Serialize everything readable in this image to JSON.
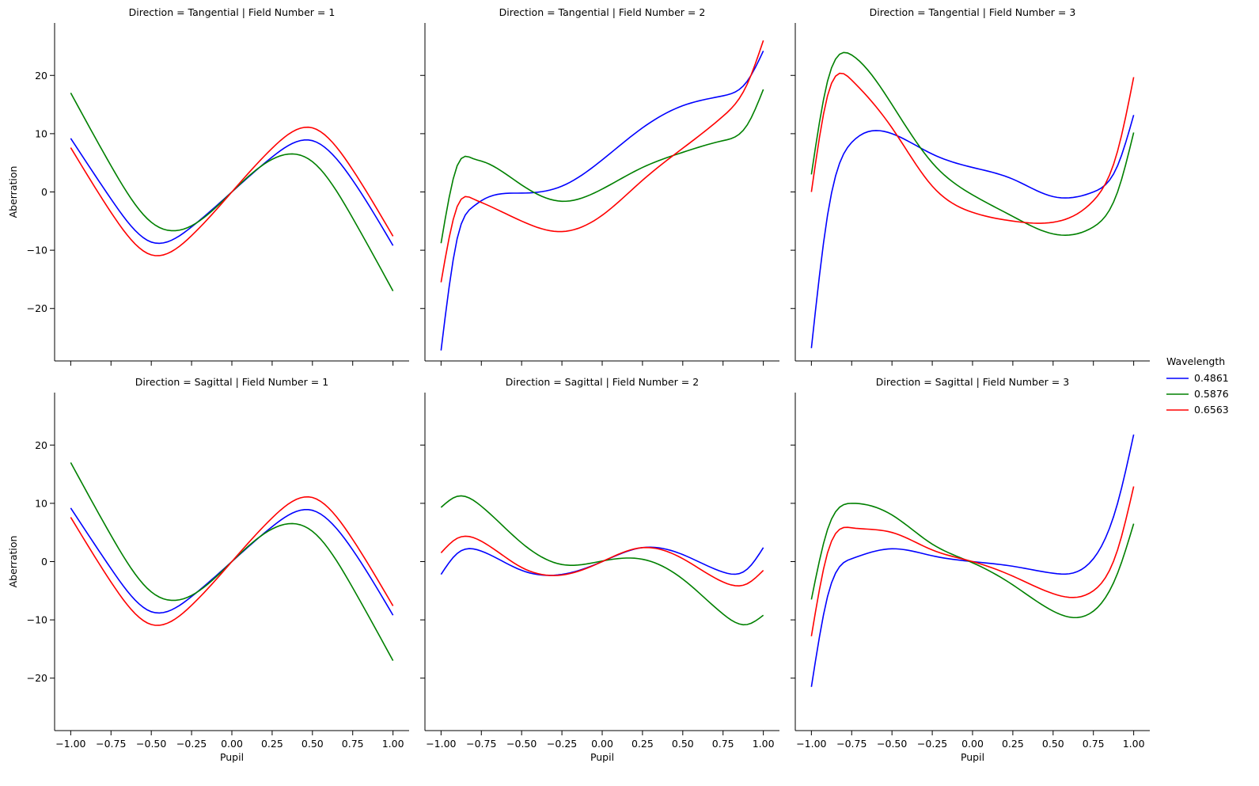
{
  "chart_data": {
    "type": "line",
    "facet_grid": true,
    "row_facet": "Direction",
    "col_facet": "Field Number",
    "xlabel": "Pupil",
    "ylabel": "Aberration",
    "xlim": [
      -1.1,
      1.1
    ],
    "ylim": [
      -29,
      29
    ],
    "xticks": [
      -1.0,
      -0.75,
      -0.5,
      -0.25,
      0.0,
      0.25,
      0.5,
      0.75,
      1.0
    ],
    "xtick_labels": [
      "−1.00",
      "−0.75",
      "−0.50",
      "−0.25",
      "0.00",
      "0.25",
      "0.50",
      "0.75",
      "1.00"
    ],
    "yticks": [
      -20,
      -10,
      0,
      10,
      20
    ],
    "ytick_labels": [
      "−20",
      "−10",
      "0",
      "10",
      "20"
    ],
    "grid": false,
    "legend": {
      "title": "Wavelength",
      "placement": "right",
      "entries": [
        {
          "label": "0.4861",
          "color": "#0000ff"
        },
        {
          "label": "0.5876",
          "color": "#008000"
        },
        {
          "label": "0.6563",
          "color": "#ff0000"
        }
      ]
    },
    "panels": [
      {
        "title": "Direction = Tangential | Field Number = 1",
        "x": [
          -1.0,
          -0.75,
          -0.5,
          -0.25,
          0.0,
          0.25,
          0.5,
          0.75,
          1.0
        ],
        "series": [
          {
            "name": "0.4861",
            "color": "#0000ff",
            "values": [
              9.2,
              -1.2,
              -8.6,
              -6.0,
              0.0,
              6.0,
              8.8,
              2.0,
              -9.2
            ]
          },
          {
            "name": "0.5876",
            "color": "#008000",
            "values": [
              17.0,
              4.5,
              -5.2,
              -5.8,
              0.0,
              5.6,
              5.2,
              -4.5,
              -17.0
            ]
          },
          {
            "name": "0.6563",
            "color": "#ff0000",
            "values": [
              7.6,
              -3.5,
              -10.8,
              -7.5,
              0.0,
              7.5,
              11.0,
              3.8,
              -7.6
            ]
          }
        ]
      },
      {
        "title": "Direction = Tangential | Field Number = 2",
        "x": [
          -1.0,
          -0.9,
          -0.8,
          -0.75,
          -0.5,
          -0.25,
          0.0,
          0.25,
          0.5,
          0.75,
          0.9,
          1.0
        ],
        "series": [
          {
            "name": "0.4861",
            "color": "#0000ff",
            "values": [
              -27.2,
              -8.0,
              -2.5,
              -1.5,
              -0.2,
              1.0,
              5.5,
              11.0,
              14.8,
              16.5,
              19.0,
              24.2
            ]
          },
          {
            "name": "0.5876",
            "color": "#008000",
            "values": [
              -8.8,
              4.5,
              5.7,
              5.3,
              1.2,
              -1.6,
              0.5,
              4.2,
              6.8,
              8.8,
              11.5,
              17.6
            ]
          },
          {
            "name": "0.6563",
            "color": "#ff0000",
            "values": [
              -15.5,
              -2.5,
              -1.2,
              -1.8,
              -5.0,
              -6.8,
              -4.0,
              2.0,
              7.5,
              13.0,
              18.5,
              26.0
            ]
          }
        ]
      },
      {
        "title": "Direction = Tangential | Field Number = 3",
        "x": [
          -1.0,
          -0.9,
          -0.75,
          -0.5,
          -0.25,
          0.0,
          0.25,
          0.5,
          0.75,
          0.9,
          1.0
        ],
        "series": [
          {
            "name": "0.4861",
            "color": "#0000ff",
            "values": [
              -26.8,
              -4.0,
              8.5,
              10.0,
              6.5,
              4.2,
              2.2,
              -0.8,
              0.0,
              4.5,
              13.2
            ]
          },
          {
            "name": "0.5876",
            "color": "#008000",
            "values": [
              3.0,
              19.0,
              23.5,
              15.0,
              5.0,
              -0.5,
              -4.2,
              -7.2,
              -6.0,
              0.0,
              10.2
            ]
          },
          {
            "name": "0.6563",
            "color": "#ff0000",
            "values": [
              0.0,
              16.5,
              19.2,
              11.0,
              1.0,
              -3.5,
              -5.0,
              -5.2,
              -1.5,
              7.0,
              19.7
            ]
          }
        ]
      },
      {
        "title": "Direction = Sagittal | Field Number = 1",
        "x": [
          -1.0,
          -0.75,
          -0.5,
          -0.25,
          0.0,
          0.25,
          0.5,
          0.75,
          1.0
        ],
        "series": [
          {
            "name": "0.4861",
            "color": "#0000ff",
            "values": [
              9.2,
              -1.2,
              -8.6,
              -6.0,
              0.0,
              6.0,
              8.8,
              2.0,
              -9.2
            ]
          },
          {
            "name": "0.5876",
            "color": "#008000",
            "values": [
              17.0,
              4.5,
              -5.2,
              -5.8,
              0.0,
              5.6,
              5.2,
              -4.5,
              -17.0
            ]
          },
          {
            "name": "0.6563",
            "color": "#ff0000",
            "values": [
              7.6,
              -3.5,
              -10.8,
              -7.5,
              0.0,
              7.5,
              11.0,
              3.8,
              -7.6
            ]
          }
        ]
      },
      {
        "title": "Direction = Sagittal | Field Number = 2",
        "x": [
          -1.0,
          -0.9,
          -0.75,
          -0.5,
          -0.25,
          0.0,
          0.25,
          0.5,
          0.75,
          0.9,
          1.0
        ],
        "series": [
          {
            "name": "0.4861",
            "color": "#0000ff",
            "values": [
              -2.2,
              1.4,
              1.8,
              -1.5,
              -2.2,
              0.0,
              2.4,
              1.2,
              -1.8,
              -1.3,
              2.4
            ]
          },
          {
            "name": "0.5876",
            "color": "#008000",
            "values": [
              9.3,
              11.2,
              9.5,
              3.2,
              -0.5,
              0.1,
              0.4,
              -3.0,
              -9.0,
              -10.8,
              -9.2
            ]
          },
          {
            "name": "0.6563",
            "color": "#ff0000",
            "values": [
              1.5,
              4.0,
              3.5,
              -1.0,
              -2.3,
              0.0,
              2.4,
              0.5,
              -3.5,
              -3.8,
              -1.5
            ]
          }
        ]
      },
      {
        "title": "Direction = Sagittal | Field Number = 3",
        "x": [
          -1.0,
          -0.9,
          -0.75,
          -0.5,
          -0.25,
          0.0,
          0.25,
          0.5,
          0.75,
          0.9,
          1.0
        ],
        "series": [
          {
            "name": "0.4861",
            "color": "#0000ff",
            "values": [
              -21.5,
              -6.0,
              0.5,
              2.2,
              1.0,
              0.0,
              -0.8,
              -2.0,
              0.5,
              10.0,
              21.8
            ]
          },
          {
            "name": "0.5876",
            "color": "#008000",
            "values": [
              -6.5,
              5.5,
              10.0,
              8.0,
              3.0,
              -0.2,
              -4.0,
              -8.5,
              -8.5,
              -2.0,
              6.5
            ]
          },
          {
            "name": "0.6563",
            "color": "#ff0000",
            "values": [
              -12.8,
              1.5,
              5.8,
              5.0,
              2.0,
              0.0,
              -2.5,
              -5.5,
              -5.0,
              2.0,
              12.9
            ]
          }
        ]
      }
    ]
  }
}
